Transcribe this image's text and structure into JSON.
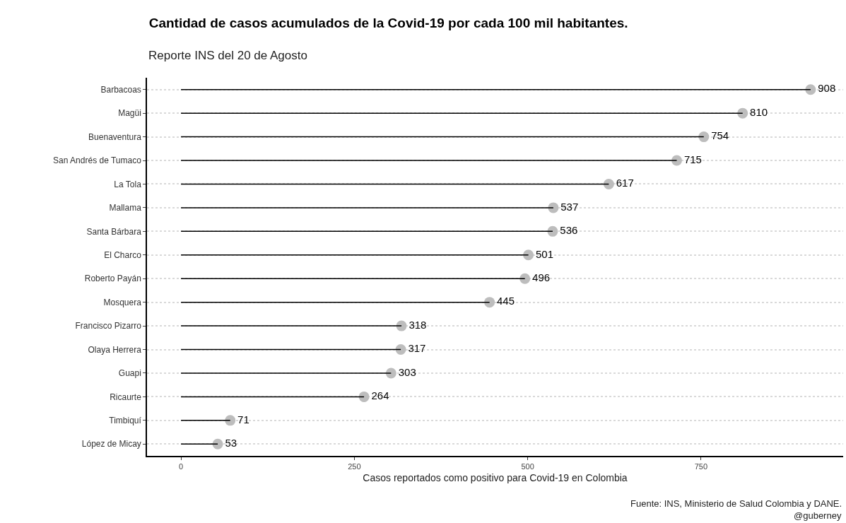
{
  "chart_data": {
    "type": "lollipop",
    "orientation": "horizontal",
    "title": "Cantidad de casos acumulados de la Covid-19 por cada 100 mil habitantes.",
    "subtitle": "Reporte INS del 20 de Agosto",
    "xlabel": "Casos reportados como positivo para Covid-19 en Colombia",
    "categories": [
      "Barbacoas",
      "Magüi",
      "Buenaventura",
      "San Andrés de Tumaco",
      "La Tola",
      "Mallama",
      "Santa Bárbara",
      "El Charco",
      "Roberto Payán",
      "Mosquera",
      "Francisco Pizarro",
      "Olaya Herrera",
      "Guapi",
      "Ricaurte",
      "Timbiquí",
      "López de Micay"
    ],
    "values": [
      908,
      810,
      754,
      715,
      617,
      537,
      536,
      501,
      496,
      445,
      318,
      317,
      303,
      264,
      71,
      53
    ],
    "color": "#bdbdbd",
    "data_labels": true,
    "marker": "circle",
    "grid": "y",
    "xlim": [
      -49,
      955
    ],
    "xticks": [
      0,
      250,
      500,
      750
    ],
    "annotations": [
      "Fuente: INS, Ministerio de Salud Colombia y DANE.",
      "@guberney"
    ]
  }
}
